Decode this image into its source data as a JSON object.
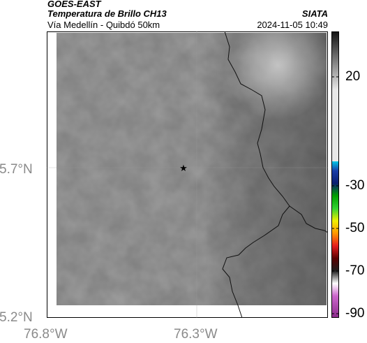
{
  "header": {
    "satellite": "GOES-EAST",
    "product": "Temperatura de Brillo CH13",
    "route": "Vía Medellín - Quibdó 50km",
    "source": "SIATA",
    "datetime": "2024-11-05 10:49"
  },
  "map": {
    "lat_labels": [
      "5.7°N",
      "5.2°N"
    ],
    "lon_labels": [
      "76.8°W",
      "76.3°W"
    ],
    "marker_icon": "star-icon",
    "border_color": "#111111",
    "background_gray": "#7f7f7f"
  },
  "colorbar": {
    "labels": [
      "20",
      "-30",
      "-50",
      "-70",
      "-90"
    ]
  }
}
